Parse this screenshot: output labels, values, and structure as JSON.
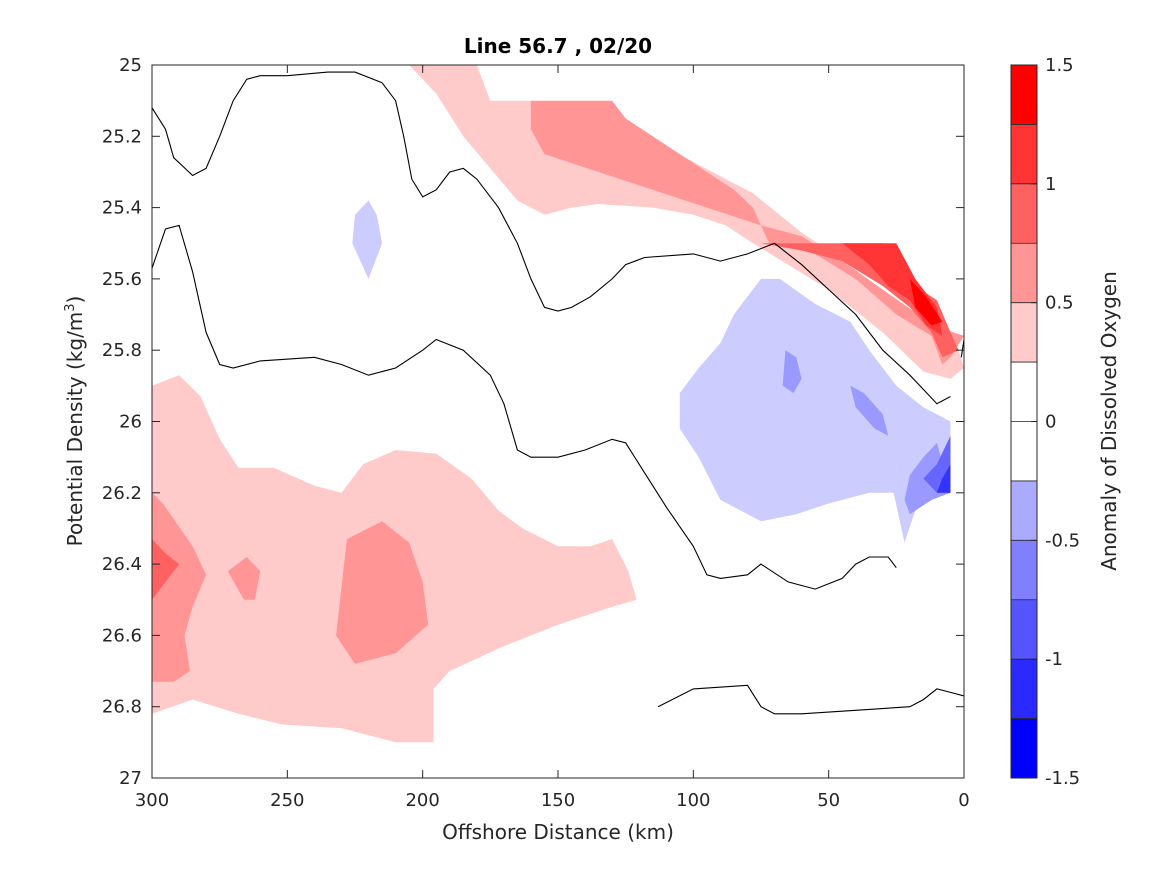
{
  "chart_data": {
    "type": "filled-contour",
    "title": "Line 56.7 , 02/20",
    "xlabel": "Offshore Distance (km)",
    "ylabel_parts": [
      "Potential Density (kg/m",
      "3",
      ")"
    ],
    "colorbar_label": "Anomaly of Dissolved Oxygen",
    "x_range": [
      300,
      0
    ],
    "x_reversed": true,
    "y_range": [
      25,
      27
    ],
    "y_reversed": true,
    "x_ticks": [
      300,
      250,
      200,
      150,
      100,
      50,
      0
    ],
    "x_tick_labels": [
      "300",
      "250",
      "200",
      "150",
      "100",
      "50",
      "0"
    ],
    "y_ticks": [
      25,
      25.2,
      25.4,
      25.6,
      25.8,
      26,
      26.2,
      26.4,
      26.6,
      26.8,
      27
    ],
    "y_tick_labels": [
      "25",
      "25.2",
      "25.4",
      "25.6",
      "25.8",
      "26",
      "26.2",
      "26.4",
      "26.6",
      "26.8",
      "27"
    ],
    "colorbar_ticks": [
      -1.5,
      -1,
      -0.5,
      0,
      0.5,
      1,
      1.5
    ],
    "colorbar_tick_labels": [
      "-1.5",
      "-1",
      "-0.5",
      "0",
      "0.5",
      "1",
      "1.5"
    ],
    "levels": [
      -1.5,
      -1.25,
      -1.0,
      -0.75,
      -0.5,
      -0.25,
      0,
      0.25,
      0.5,
      0.75,
      1.0,
      1.25,
      1.5
    ],
    "level_colors": [
      "#0000ff",
      "#2a2aff",
      "#5555ff",
      "#8080ff",
      "#aaaaff",
      "#ffffff",
      "#ffffff",
      "#ffcaca",
      "#ff9595",
      "#ff6060",
      "#ff3535",
      "#ff0000"
    ],
    "grid": false,
    "regions": [
      {
        "level": 0.25,
        "color": "#ffcaca",
        "points": [
          [
            300,
            25.9
          ],
          [
            290,
            25.87
          ],
          [
            282,
            25.93
          ],
          [
            275,
            26.05
          ],
          [
            268,
            26.13
          ],
          [
            255,
            26.13
          ],
          [
            240,
            26.18
          ],
          [
            230,
            26.2
          ],
          [
            222,
            26.12
          ],
          [
            210,
            26.08
          ],
          [
            195,
            26.09
          ],
          [
            182,
            26.16
          ],
          [
            172,
            26.25
          ],
          [
            163,
            26.3
          ],
          [
            150,
            26.35
          ],
          [
            138,
            26.35
          ],
          [
            130,
            26.33
          ],
          [
            124,
            26.42
          ],
          [
            121,
            26.5
          ],
          [
            130,
            26.52
          ],
          [
            150,
            26.57
          ],
          [
            170,
            26.63
          ],
          [
            190,
            26.7
          ],
          [
            196,
            26.75
          ],
          [
            196,
            26.9
          ],
          [
            210,
            26.9
          ],
          [
            230,
            26.86
          ],
          [
            252,
            26.85
          ],
          [
            268,
            26.82
          ],
          [
            285,
            26.78
          ],
          [
            300,
            26.82
          ]
        ]
      },
      {
        "level": 0.5,
        "color": "#ff9595",
        "points": [
          [
            300,
            26.2
          ],
          [
            296,
            26.23
          ],
          [
            285,
            26.35
          ],
          [
            280,
            26.43
          ],
          [
            285,
            26.52
          ],
          [
            288,
            26.6
          ],
          [
            286,
            26.7
          ],
          [
            292,
            26.73
          ],
          [
            300,
            26.73
          ]
        ]
      },
      {
        "level": 0.5,
        "color": "#ff9595",
        "points": [
          [
            272,
            26.42
          ],
          [
            265,
            26.38
          ],
          [
            260,
            26.42
          ],
          [
            262,
            26.5
          ],
          [
            266,
            26.5
          ],
          [
            272,
            26.42
          ]
        ]
      },
      {
        "level": 0.5,
        "color": "#ff9595",
        "points": [
          [
            228,
            26.33
          ],
          [
            215,
            26.28
          ],
          [
            205,
            26.34
          ],
          [
            200,
            26.45
          ],
          [
            198,
            26.57
          ],
          [
            210,
            26.65
          ],
          [
            225,
            26.68
          ],
          [
            232,
            26.6
          ],
          [
            228,
            26.33
          ]
        ]
      },
      {
        "level": 0.75,
        "color": "#ff6060",
        "points": [
          [
            300,
            26.33
          ],
          [
            295,
            26.37
          ],
          [
            290,
            26.4
          ],
          [
            295,
            26.45
          ],
          [
            300,
            26.5
          ]
        ]
      },
      {
        "level": 0.25,
        "color": "#ffcaca",
        "points": [
          [
            205,
            25.0
          ],
          [
            180,
            25.0
          ],
          [
            175,
            25.1
          ],
          [
            160,
            25.1
          ],
          [
            145,
            25.15
          ],
          [
            118,
            25.2
          ],
          [
            98,
            25.28
          ],
          [
            78,
            25.36
          ],
          [
            60,
            25.47
          ],
          [
            42,
            25.56
          ],
          [
            25,
            25.68
          ],
          [
            10,
            25.74
          ],
          [
            2,
            25.8
          ],
          [
            0,
            25.85
          ],
          [
            5,
            25.88
          ],
          [
            15,
            25.86
          ],
          [
            30,
            25.75
          ],
          [
            50,
            25.63
          ],
          [
            65,
            25.56
          ],
          [
            78,
            25.5
          ],
          [
            88,
            25.45
          ],
          [
            100,
            25.42
          ],
          [
            115,
            25.4
          ],
          [
            135,
            25.39
          ],
          [
            145,
            25.4
          ],
          [
            155,
            25.42
          ],
          [
            165,
            25.38
          ],
          [
            175,
            25.29
          ],
          [
            185,
            25.2
          ],
          [
            195,
            25.08
          ]
        ]
      },
      {
        "level": 0.5,
        "color": "#ff9595",
        "points": [
          [
            160,
            25.1
          ],
          [
            130,
            25.1
          ],
          [
            125,
            25.15
          ],
          [
            105,
            25.25
          ],
          [
            85,
            25.35
          ],
          [
            78,
            25.4
          ],
          [
            72,
            25.5
          ],
          [
            55,
            25.53
          ],
          [
            40,
            25.6
          ],
          [
            25,
            25.7
          ],
          [
            12,
            25.76
          ],
          [
            8,
            25.84
          ],
          [
            5,
            25.82
          ],
          [
            0,
            25.76
          ],
          [
            4,
            25.75
          ],
          [
            15,
            25.71
          ],
          [
            30,
            25.63
          ],
          [
            45,
            25.55
          ],
          [
            60,
            25.48
          ],
          [
            75,
            25.45
          ],
          [
            95,
            25.4
          ],
          [
            115,
            25.35
          ],
          [
            135,
            25.3
          ],
          [
            155,
            25.25
          ],
          [
            160,
            25.18
          ]
        ]
      },
      {
        "level": 0.75,
        "color": "#ff6060",
        "points": [
          [
            75,
            25.5
          ],
          [
            30,
            25.5
          ],
          [
            22,
            25.6
          ],
          [
            10,
            25.66
          ],
          [
            5,
            25.75
          ],
          [
            2,
            25.8
          ],
          [
            8,
            25.82
          ],
          [
            12,
            25.75
          ],
          [
            20,
            25.68
          ],
          [
            30,
            25.62
          ],
          [
            45,
            25.55
          ],
          [
            60,
            25.52
          ]
        ]
      },
      {
        "level": 1.0,
        "color": "#ff3535",
        "points": [
          [
            45,
            25.5
          ],
          [
            25,
            25.5
          ],
          [
            18,
            25.6
          ],
          [
            10,
            25.68
          ],
          [
            8,
            25.76
          ],
          [
            14,
            25.73
          ],
          [
            20,
            25.66
          ],
          [
            28,
            25.62
          ],
          [
            35,
            25.56
          ]
        ]
      },
      {
        "level": 1.25,
        "color": "#ff0000",
        "points": [
          [
            20,
            25.6
          ],
          [
            14,
            25.65
          ],
          [
            8,
            25.72
          ],
          [
            12,
            25.73
          ],
          [
            18,
            25.68
          ]
        ]
      },
      {
        "level": -0.25,
        "color": "#ccccff",
        "points": [
          [
            220,
            25.38
          ],
          [
            225,
            25.42
          ],
          [
            226,
            25.5
          ],
          [
            220,
            25.6
          ],
          [
            215,
            25.5
          ],
          [
            217,
            25.42
          ]
        ]
      },
      {
        "level": -0.25,
        "color": "#ccccff",
        "points": [
          [
            75,
            25.6
          ],
          [
            68,
            25.6
          ],
          [
            55,
            25.67
          ],
          [
            42,
            25.72
          ],
          [
            35,
            25.8
          ],
          [
            25,
            25.9
          ],
          [
            15,
            25.96
          ],
          [
            5,
            26.0
          ],
          [
            5,
            26.2
          ],
          [
            12,
            26.22
          ],
          [
            18,
            26.25
          ],
          [
            22,
            26.34
          ],
          [
            26,
            26.2
          ],
          [
            35,
            26.2
          ],
          [
            50,
            26.23
          ],
          [
            62,
            26.26
          ],
          [
            75,
            26.28
          ],
          [
            90,
            26.22
          ],
          [
            98,
            26.1
          ],
          [
            105,
            26.02
          ],
          [
            105,
            25.92
          ],
          [
            98,
            25.85
          ],
          [
            90,
            25.78
          ],
          [
            85,
            25.7
          ]
        ]
      },
      {
        "level": -0.5,
        "color": "#9999ff",
        "points": [
          [
            66,
            25.8
          ],
          [
            62,
            25.82
          ],
          [
            60,
            25.88
          ],
          [
            63,
            25.92
          ],
          [
            67,
            25.9
          ]
        ]
      },
      {
        "level": -0.5,
        "color": "#9999ff",
        "points": [
          [
            42,
            25.9
          ],
          [
            37,
            25.92
          ],
          [
            30,
            25.98
          ],
          [
            28,
            26.04
          ],
          [
            33,
            26.02
          ],
          [
            40,
            25.96
          ]
        ]
      },
      {
        "level": -0.5,
        "color": "#9999ff",
        "points": [
          [
            10,
            26.06
          ],
          [
            15,
            26.1
          ],
          [
            20,
            26.15
          ],
          [
            22,
            26.22
          ],
          [
            20,
            26.26
          ],
          [
            12,
            26.22
          ],
          [
            5,
            26.2
          ]
        ]
      },
      {
        "level": -0.75,
        "color": "#6666ff",
        "points": [
          [
            5,
            26.04
          ],
          [
            10,
            26.12
          ],
          [
            15,
            26.16
          ],
          [
            10,
            26.2
          ],
          [
            5,
            26.2
          ]
        ]
      },
      {
        "level": -1.0,
        "color": "#3333ff",
        "points": [
          [
            5,
            26.12
          ],
          [
            8,
            26.16
          ],
          [
            10,
            26.2
          ],
          [
            5,
            26.2
          ]
        ]
      }
    ],
    "contour_lines": [
      [
        [
          300,
          25.12
        ],
        [
          295,
          25.18
        ],
        [
          292,
          25.26
        ],
        [
          285,
          25.31
        ],
        [
          280,
          25.29
        ],
        [
          275,
          25.2
        ],
        [
          270,
          25.1
        ],
        [
          265,
          25.04
        ],
        [
          260,
          25.03
        ],
        [
          250,
          25.03
        ],
        [
          235,
          25.02
        ],
        [
          225,
          25.02
        ],
        [
          215,
          25.05
        ],
        [
          210,
          25.1
        ],
        [
          207,
          25.2
        ],
        [
          204,
          25.32
        ],
        [
          200,
          25.37
        ],
        [
          195,
          25.35
        ],
        [
          190,
          25.3
        ],
        [
          185,
          25.29
        ],
        [
          180,
          25.32
        ],
        [
          172,
          25.4
        ],
        [
          165,
          25.5
        ],
        [
          160,
          25.6
        ],
        [
          155,
          25.68
        ],
        [
          150,
          25.69
        ],
        [
          145,
          25.68
        ],
        [
          138,
          25.65
        ],
        [
          130,
          25.6
        ],
        [
          125,
          25.56
        ],
        [
          118,
          25.54
        ],
        [
          100,
          25.53
        ],
        [
          90,
          25.55
        ],
        [
          80,
          25.53
        ],
        [
          70,
          25.5
        ],
        [
          60,
          25.56
        ],
        [
          50,
          25.63
        ],
        [
          40,
          25.7
        ],
        [
          30,
          25.8
        ],
        [
          20,
          25.87
        ],
        [
          10,
          25.95
        ],
        [
          5,
          25.93
        ]
      ],
      [
        [
          300,
          25.57
        ],
        [
          295,
          25.46
        ],
        [
          290,
          25.45
        ],
        [
          285,
          25.58
        ],
        [
          280,
          25.75
        ],
        [
          275,
          25.84
        ],
        [
          270,
          25.85
        ],
        [
          260,
          25.83
        ],
        [
          240,
          25.82
        ],
        [
          230,
          25.84
        ],
        [
          220,
          25.87
        ],
        [
          210,
          25.85
        ],
        [
          200,
          25.8
        ],
        [
          195,
          25.77
        ],
        [
          185,
          25.8
        ],
        [
          175,
          25.87
        ],
        [
          170,
          25.95
        ],
        [
          165,
          26.08
        ],
        [
          160,
          26.1
        ],
        [
          150,
          26.1
        ],
        [
          140,
          26.08
        ],
        [
          130,
          26.05
        ],
        [
          125,
          26.06
        ],
        [
          120,
          26.12
        ],
        [
          110,
          26.24
        ],
        [
          100,
          26.35
        ],
        [
          95,
          26.43
        ],
        [
          90,
          26.44
        ],
        [
          80,
          26.43
        ],
        [
          75,
          26.4
        ],
        [
          65,
          26.45
        ],
        [
          55,
          26.47
        ],
        [
          45,
          26.44
        ],
        [
          40,
          26.4
        ],
        [
          35,
          26.38
        ],
        [
          28,
          26.38
        ],
        [
          25,
          26.41
        ]
      ],
      [
        [
          113,
          26.8
        ],
        [
          100,
          26.75
        ],
        [
          80,
          26.74
        ],
        [
          75,
          26.8
        ],
        [
          70,
          26.82
        ],
        [
          60,
          26.82
        ],
        [
          40,
          26.81
        ],
        [
          20,
          26.8
        ],
        [
          15,
          26.78
        ],
        [
          10,
          26.75
        ],
        [
          5,
          26.76
        ],
        [
          0,
          26.77
        ]
      ]
    ],
    "contour_fragments": [
      [
        [
          0,
          25.77
        ],
        [
          1,
          25.82
        ]
      ]
    ]
  }
}
